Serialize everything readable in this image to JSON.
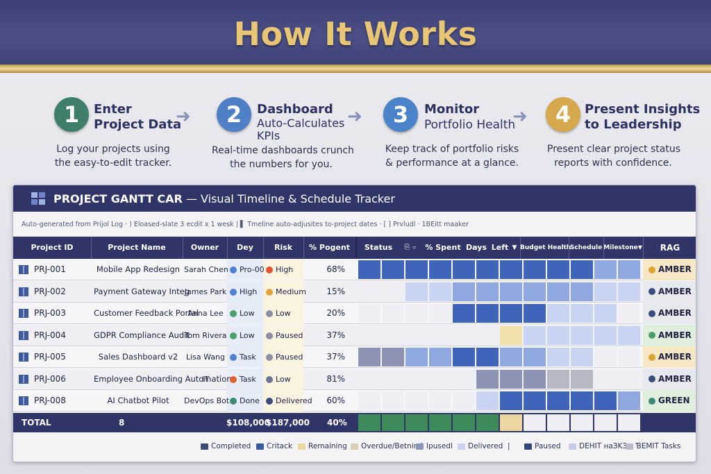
{
  "header": {
    "title": "How It Works"
  },
  "steps": [
    {
      "number": "1",
      "title": "Enter",
      "subtitle": "Project Data",
      "desc1": "Log your projects using",
      "desc2": "the easy-to-edit tracker.",
      "color": "#3f7e6a"
    },
    {
      "number": "2",
      "title": "Dashboard",
      "subtitle": "Auto-Calculates KPIs",
      "desc1": "Real-time dashboards crunch",
      "desc2": "the numbers for you.",
      "color": "#4f7fc4"
    },
    {
      "number": "3",
      "title": "Monitor",
      "subtitle": "Portfolio Health",
      "desc1": "Keep track of portfolio risks",
      "desc2": "& performance at a glance.",
      "color": "#4a83c7"
    },
    {
      "number": "4",
      "title": "Present Insights",
      "subtitle": "to Leadership",
      "desc1": "Present clear project status",
      "desc2": "reports with confidence.",
      "color": "#d6a84c"
    }
  ],
  "panel": {
    "title_bold": "PROJECT GANTT CAR",
    "title_rest": " — Visual Timeline & Schedule Tracker",
    "subbar": "Auto-generated from Prijol Log  ·  )  Eloased-slate 3 ecdit x 1 wesk  |  ▌ Tmeline auto-adjusites to-project dates  ·  [ ]  Prvludl  ·  1BEitt maaker"
  },
  "columns": {
    "project_id": "Project ID",
    "project_name": "Project Name",
    "owner": "Owner",
    "dey": "Dey",
    "risk": "Risk",
    "pogent": "% Pogent",
    "status": "Status",
    "status_icons": "⎘  ⌔",
    "spent": "% Spent",
    "days": "Days",
    "left": "Left",
    "budget": "Budget Health",
    "schedule": "Schedule",
    "milestone": "Milestone",
    "rag": "RAG"
  },
  "rows": [
    {
      "id": "PRJ-001",
      "name": "Mobile App Redesign",
      "owner": "Sarah Chen",
      "dey": "Pro-00",
      "dey_color": "#4e7fd1",
      "risk": "High",
      "risk_color": "#e0532f",
      "pct": "68%",
      "rag": "AMBER",
      "rag_color": "#d8a531"
    },
    {
      "id": "PRJ-002",
      "name": "Payment Gateway Integ",
      "owner": "James Park",
      "dey": "High",
      "dey_color": "#4e7fd1",
      "risk": "Medium",
      "risk_color": "#e3a23a",
      "pct": "15%",
      "rag": "AMBER",
      "rag_color": "#3a4c7c"
    },
    {
      "id": "PRJ-003",
      "name": "Customer Feedback Portal",
      "owner": "Anna Lee",
      "dey": "Low",
      "dey_color": "#4e9c6a",
      "risk": "Low",
      "risk_color": "#8c90a4",
      "pct": "20%",
      "rag": "AMBER",
      "rag_color": "#3a4c7c"
    },
    {
      "id": "PRJ-004",
      "name": "GDPR Compliance Audit",
      "owner": "Tom Rivera",
      "dey": "Low",
      "dey_color": "#4e9c6a",
      "risk": "Paused",
      "risk_color": "#8c90a4",
      "pct": "37%",
      "rag": "AMBER",
      "rag_color": "#4e9c6a"
    },
    {
      "id": "PRJ-005",
      "name": "Sales Dashboard v2",
      "owner": "Lisa Wang",
      "dey": "Task",
      "dey_color": "#4e7fd1",
      "risk": "Paused",
      "risk_color": "#8c90a4",
      "pct": "37%",
      "rag": "AMBER",
      "rag_color": "#d8a531"
    },
    {
      "id": "PRJ-006",
      "name": "Employee Onboarding Automation",
      "owner": "IT",
      "dey": "Task",
      "dey_color": "#e0632f",
      "risk": "Low",
      "risk_color": "#6d7596",
      "pct": "81%",
      "rag": "AMBER",
      "rag_color": "#3a4c7c"
    },
    {
      "id": "PRJ-008",
      "name": "AI Chatbot Pilot",
      "owner": "DevOps Bot",
      "dey": "Done",
      "dey_color": "#3d8a72",
      "risk": "Delivered",
      "risk_color": "#3a4c7c",
      "pct": "60%",
      "rag": "GREEN",
      "rag_color": "#3d8a72"
    }
  ],
  "total": {
    "label": "TOTAL",
    "count": "8",
    "dey": "$108,000",
    "risk": "$187,000",
    "pct": "40%"
  },
  "legend": [
    {
      "label": "Completed",
      "color": "#3e4a7a"
    },
    {
      "label": "Critack",
      "color": "#3c5a9e"
    },
    {
      "label": "Remaining",
      "color": "#ecd6a2"
    },
    {
      "label": "Overdue/Betnind",
      "color": "#d9cfb4"
    },
    {
      "label": "Ipusedl",
      "color": "#8a94b8"
    },
    {
      "label": "Delivered",
      "color": "#c9d3ef"
    },
    {
      "label": "|",
      "color": ""
    },
    {
      "label": "Paused",
      "color": "#36457a"
    },
    {
      "label": "DEHIT нaЗK3",
      "color": "#c4cbe3"
    },
    {
      "label": "ƁEMIT Tasks",
      "color": "#b9bcc6"
    }
  ]
}
